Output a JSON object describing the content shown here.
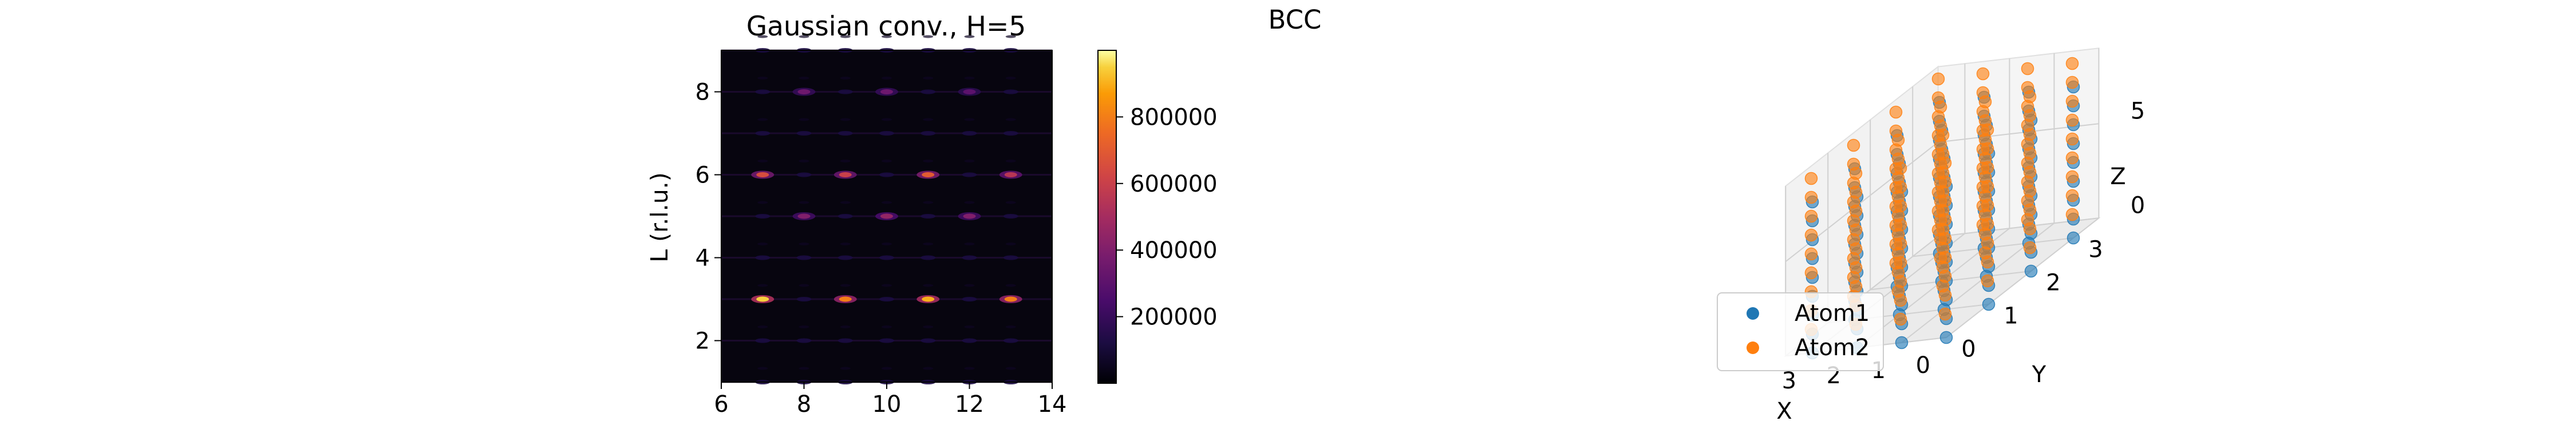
{
  "figure": {
    "suptitle": "BCC"
  },
  "chart_data": [
    {
      "type": "heatmap",
      "title": "Gaussian conv., H=5",
      "xlabel": "",
      "ylabel": "L (r.l.u.)",
      "xlim": [
        6,
        14
      ],
      "ylim": [
        1,
        9
      ],
      "xticks": [
        "6",
        "8",
        "10",
        "12",
        "14"
      ],
      "yticks": [
        "2",
        "4",
        "6",
        "8"
      ],
      "colormap": "inferno",
      "colorbar": {
        "range": [
          0,
          1000000
        ],
        "ticks": [
          "200000",
          "400000",
          "600000",
          "800000"
        ]
      },
      "peak_h": [
        7,
        8,
        9,
        10,
        11,
        12,
        13
      ],
      "peak_l": [
        1,
        2,
        3,
        4,
        5,
        6,
        7,
        8,
        9
      ],
      "bright_spots": [
        {
          "h": 7,
          "l": 3,
          "value": 950000
        },
        {
          "h": 9,
          "l": 3,
          "value": 800000
        },
        {
          "h": 11,
          "l": 3,
          "value": 900000
        },
        {
          "h": 13,
          "l": 3,
          "value": 800000
        },
        {
          "h": 7,
          "l": 6,
          "value": 650000
        },
        {
          "h": 9,
          "l": 6,
          "value": 600000
        },
        {
          "h": 11,
          "l": 6,
          "value": 700000
        },
        {
          "h": 13,
          "l": 6,
          "value": 550000
        },
        {
          "h": 10,
          "l": 5,
          "value": 450000
        },
        {
          "h": 8,
          "l": 5,
          "value": 400000
        },
        {
          "h": 12,
          "l": 5,
          "value": 400000
        },
        {
          "h": 8,
          "l": 8,
          "value": 350000
        },
        {
          "h": 10,
          "l": 8,
          "value": 350000
        },
        {
          "h": 12,
          "l": 8,
          "value": 300000
        }
      ]
    },
    {
      "type": "scatter",
      "title": "",
      "subtype": "3d",
      "xlabel": "X",
      "ylabel": "Y",
      "zlabel": "Z",
      "xticks": [
        "0",
        "1",
        "2",
        "3"
      ],
      "yticks": [
        "0",
        "1",
        "2",
        "3"
      ],
      "zticks": [
        "0",
        "5"
      ],
      "xlim": [
        0,
        3.6
      ],
      "ylim": [
        0,
        3.6
      ],
      "zlim": [
        0,
        9
      ],
      "legend": {
        "position": "lower-left",
        "entries": [
          "Atom1",
          "Atom2"
        ]
      },
      "series": [
        {
          "name": "Atom1",
          "color": "#1f77b4",
          "x": [
            0,
            1,
            2,
            3
          ],
          "y": [
            0,
            1,
            2,
            3
          ],
          "z": [
            0,
            1,
            2,
            3,
            4,
            5,
            6,
            7,
            8
          ]
        },
        {
          "name": "Atom2",
          "color": "#ff7f0e",
          "x": [
            0.5,
            1.5,
            2.5,
            3.5
          ],
          "y": [
            0.5,
            1.5,
            2.5,
            3.5
          ],
          "z": [
            0.5,
            1.5,
            2.5,
            3.5,
            4.5,
            5.5,
            6.5,
            7.5,
            8.5
          ]
        }
      ]
    }
  ]
}
